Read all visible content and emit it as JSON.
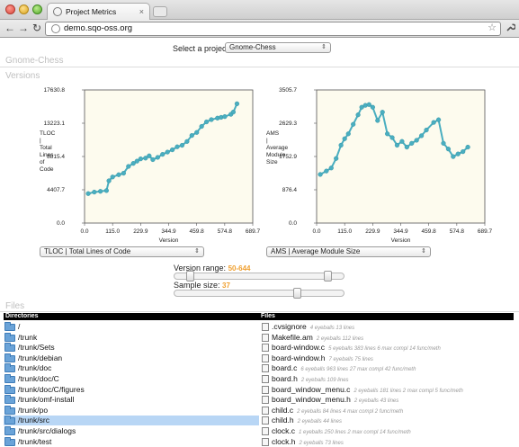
{
  "browser": {
    "tab_title": "Project Metrics",
    "tab_close": "×",
    "url": "demo.sqo-oss.org",
    "back": "←",
    "forward": "→",
    "reload": "↻",
    "star": "☆",
    "wrench": "🔧"
  },
  "header": {
    "select_label": "Select a project",
    "project_value": "Gnome-Chess",
    "project_title": "Gnome-Chess",
    "versions_heading": "Versions",
    "files_heading": "Files"
  },
  "chart_data": [
    {
      "type": "line",
      "xlabel": "Version",
      "ylabel": "TLOC | Total Lines of Code",
      "xticks": [
        "0.0",
        "115.0",
        "229.9",
        "344.9",
        "459.8",
        "574.8",
        "689.7"
      ],
      "yticks": [
        "0.0",
        "4407.7",
        "8815.4",
        "13223.1",
        "17630.8"
      ],
      "xlim": [
        0,
        689.7
      ],
      "ylim": [
        0,
        17630.8
      ],
      "color": "#4aaec0",
      "x": [
        15,
        40,
        65,
        90,
        100,
        115,
        140,
        160,
        180,
        200,
        215,
        230,
        250,
        265,
        280,
        300,
        320,
        340,
        360,
        380,
        400,
        420,
        440,
        460,
        480,
        500,
        520,
        545,
        560,
        575,
        600,
        610,
        625
      ],
      "y": [
        3900,
        4100,
        4200,
        4300,
        5600,
        6100,
        6400,
        6600,
        7500,
        7900,
        8200,
        8500,
        8600,
        8900,
        8400,
        8700,
        9100,
        9400,
        9700,
        10100,
        10300,
        10800,
        11600,
        12000,
        12800,
        13400,
        13700,
        13900,
        14000,
        14100,
        14400,
        14700,
        15800
      ]
    },
    {
      "type": "line",
      "xlabel": "Version",
      "ylabel": "AMS | Average Module Size",
      "xticks": [
        "0.0",
        "115.0",
        "229.9",
        "344.9",
        "459.8",
        "574.8",
        "689.7"
      ],
      "yticks": [
        "0.0",
        "876.4",
        "1752.9",
        "2629.3",
        "3505.7"
      ],
      "xlim": [
        0,
        689.7
      ],
      "ylim": [
        0,
        3505.7
      ],
      "color": "#4aaec0",
      "x": [
        15,
        40,
        60,
        80,
        100,
        115,
        130,
        150,
        170,
        185,
        200,
        215,
        230,
        250,
        270,
        290,
        310,
        330,
        350,
        370,
        390,
        410,
        430,
        450,
        480,
        500,
        520,
        540,
        560,
        580,
        600,
        620
      ],
      "y": [
        1280,
        1370,
        1450,
        1700,
        2050,
        2220,
        2350,
        2600,
        2850,
        3050,
        3100,
        3120,
        3050,
        2700,
        2920,
        2350,
        2250,
        2050,
        2150,
        2000,
        2100,
        2180,
        2300,
        2450,
        2650,
        2720,
        2100,
        1950,
        1750,
        1820,
        1880,
        2000
      ]
    }
  ],
  "controls": {
    "left_metric": "TLOC | Total Lines of Code",
    "right_metric": "AMS | Average Module Size",
    "version_range_label": "Version range:",
    "version_range_value": "50-644",
    "version_range_fraction": [
      0.07,
      0.93
    ],
    "sample_size_label": "Sample size:",
    "sample_size_value": "37",
    "sample_size_fraction": 0.74
  },
  "directories": {
    "header": "Directories",
    "items": [
      "/",
      "/trunk",
      "/trunk/Sets",
      "/trunk/debian",
      "/trunk/doc",
      "/trunk/doc/C",
      "/trunk/doc/C/figures",
      "/trunk/omf-install",
      "/trunk/po",
      "/trunk/src",
      "/trunk/src/dialogs",
      "/trunk/test"
    ],
    "selected": "/trunk/src"
  },
  "files": {
    "header": "Files",
    "items": [
      {
        "name": ".cvsignore",
        "stats": "4 eyeballs 13 lines"
      },
      {
        "name": "Makefile.am",
        "stats": "2 eyeballs 112 lines"
      },
      {
        "name": "board-window.c",
        "stats": "5 eyeballs 383 lines 6 max compl 14 func/meth"
      },
      {
        "name": "board-window.h",
        "stats": "7 eyeballs 75 lines"
      },
      {
        "name": "board.c",
        "stats": "6 eyeballs 963 lines 27 max compl 42 func/meth"
      },
      {
        "name": "board.h",
        "stats": "2 eyeballs 109 lines"
      },
      {
        "name": "board_window_menu.c",
        "stats": "2 eyeballs 181 lines 2 max compl 5 func/meth"
      },
      {
        "name": "board_window_menu.h",
        "stats": "2 eyeballs 43 lines"
      },
      {
        "name": "child.c",
        "stats": "2 eyeballs 84 lines 4 max compl 2 func/meth"
      },
      {
        "name": "child.h",
        "stats": "2 eyeballs 44 lines"
      },
      {
        "name": "clock.c",
        "stats": "1 eyeballs 250 lines 2 max compl 14 func/meth"
      },
      {
        "name": "clock.h",
        "stats": "2 eyeballs 73 lines"
      }
    ]
  }
}
